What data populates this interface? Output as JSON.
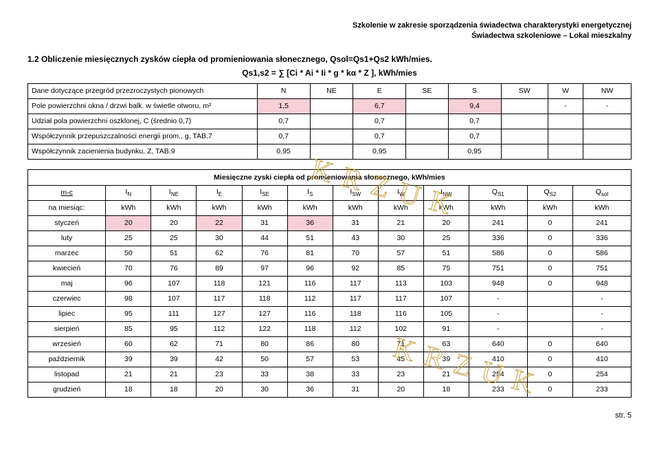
{
  "header": {
    "line1": "Szkolenie w zakresie sporządzenia świadectwa charakterystyki energetycznej",
    "line2": "Świadectwa szkoleniowe – Lokal mieszkalny"
  },
  "section_title": "1.2    Obliczenie miesięcznych zysków ciepła od promieniowania słonecznego, Qsol=Qs1+Qs2 kWh/mies.",
  "formula": "Qs1,s2 = ∑ [Ci * Ai * Ii * g * kα * Z ], kWh/mies",
  "table1": {
    "row0_label": "Dane dotyczące przegród przezroczystych pionowych",
    "dirs": [
      "N",
      "NE",
      "E",
      "SE",
      "S",
      "SW",
      "W",
      "NW"
    ],
    "rows": [
      {
        "label": "Pole powierzchni okna / drzwi balk. w świetle otworu, m²",
        "vals": [
          "1,5",
          "",
          "6,7",
          "",
          "9,4",
          "",
          "-",
          "-"
        ],
        "pink": [
          0,
          2,
          4
        ]
      },
      {
        "label": "Udział pola powierzchni oszklonej, C (średnio 0,7)",
        "vals": [
          "0,7",
          "",
          "0,7",
          "",
          "0,7",
          "",
          "",
          ""
        ],
        "pink": []
      },
      {
        "label": "Współczynnik przepuszczalności energii prom., g, TAB.7",
        "vals": [
          "0,7",
          "",
          "0,7",
          "",
          "0,7",
          "",
          "",
          ""
        ],
        "pink": []
      },
      {
        "label": "Współczynnik zacienienia budynku, Z, TAB.9",
        "vals": [
          "0,95",
          "",
          "0,95",
          "",
          "0,95",
          "",
          "",
          ""
        ],
        "pink": []
      }
    ]
  },
  "table2": {
    "caption": "Miesięczne zyski ciepła od promieniowania słonecznego, kWh/mies",
    "head1": [
      "m-c",
      "I N",
      "I NE",
      "I E",
      "I SE",
      "I S",
      "I SW",
      "I W",
      "I NW",
      "Q S1",
      "Q S2",
      "Q sol"
    ],
    "head2": [
      "na miesiąc:",
      "kWh",
      "kWh",
      "kWh",
      "kWh",
      "kWh",
      "kWh",
      "kWh",
      "kWh",
      "kWh",
      "kWh",
      "kWh"
    ],
    "rows": [
      {
        "m": "styczeń",
        "v": [
          "20",
          "20",
          "22",
          "31",
          "36",
          "31",
          "21",
          "20",
          "241",
          "0",
          "241"
        ],
        "pink": [
          0,
          2,
          4
        ]
      },
      {
        "m": "luty",
        "v": [
          "25",
          "25",
          "30",
          "44",
          "51",
          "43",
          "30",
          "25",
          "336",
          "0",
          "336"
        ],
        "pink": []
      },
      {
        "m": "marzec",
        "v": [
          "50",
          "51",
          "62",
          "76",
          "81",
          "70",
          "57",
          "51",
          "586",
          "0",
          "586"
        ],
        "pink": []
      },
      {
        "m": "kwiecień",
        "v": [
          "70",
          "76",
          "89",
          "97",
          "96",
          "92",
          "85",
          "75",
          "751",
          "0",
          "751"
        ],
        "pink": []
      },
      {
        "m": "maj",
        "v": [
          "96",
          "107",
          "118",
          "121",
          "116",
          "117",
          "113",
          "103",
          "948",
          "0",
          "948"
        ],
        "pink": []
      },
      {
        "m": "czerwiec",
        "v": [
          "98",
          "107",
          "117",
          "118",
          "112",
          "117",
          "117",
          "107",
          "-",
          "",
          "-"
        ],
        "pink": []
      },
      {
        "m": "lipiec",
        "v": [
          "95",
          "111",
          "127",
          "127",
          "116",
          "118",
          "116",
          "105",
          "-",
          "",
          "-"
        ],
        "pink": []
      },
      {
        "m": "sierpień",
        "v": [
          "85",
          "95",
          "112",
          "122",
          "118",
          "112",
          "102",
          "91",
          "-",
          "",
          "-"
        ],
        "pink": []
      },
      {
        "m": "wrzesień",
        "v": [
          "60",
          "62",
          "71",
          "80",
          "86",
          "80",
          "71",
          "63",
          "640",
          "0",
          "640"
        ],
        "pink": []
      },
      {
        "m": "październik",
        "v": [
          "39",
          "39",
          "42",
          "50",
          "57",
          "53",
          "45",
          "39",
          "410",
          "0",
          "410"
        ],
        "pink": []
      },
      {
        "m": "listopad",
        "v": [
          "21",
          "21",
          "23",
          "33",
          "38",
          "33",
          "23",
          "21",
          "254",
          "0",
          "254"
        ],
        "pink": []
      },
      {
        "m": "grudzień",
        "v": [
          "18",
          "18",
          "20",
          "30",
          "36",
          "31",
          "20",
          "18",
          "233",
          "0",
          "233"
        ],
        "pink": []
      }
    ]
  },
  "footer": "str. 5",
  "watermark": "KRZUK",
  "colors": {
    "pink": "#f7cfd6",
    "border": "#000000",
    "bg": "#ffffff"
  }
}
